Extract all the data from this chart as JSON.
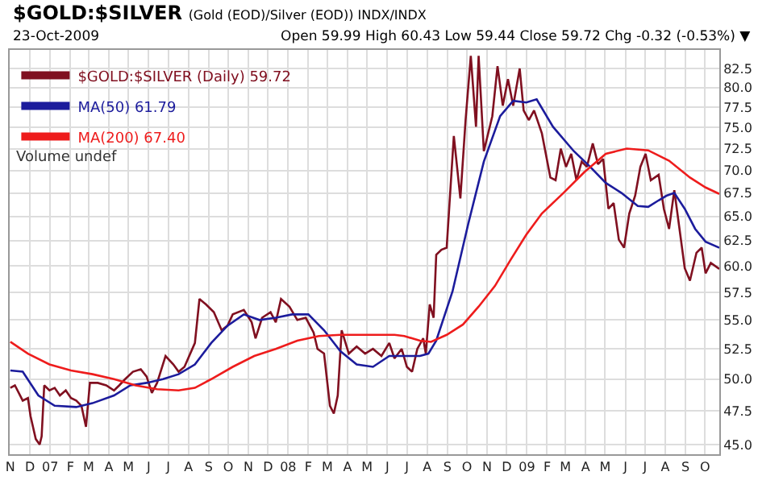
{
  "chart_data": {
    "type": "line",
    "title": "$GOLD:$SILVER",
    "subtitle": "(Gold (EOD)/Silver (EOD)) INDX/INDX",
    "annotations": [
      "23-Oct-2009",
      "Open 59.99 High 60.43 Low 59.44 Close 59.72 Chg -0.32 (-0.53%) ▼",
      "Volume undef"
    ],
    "log": true,
    "grid": true,
    "legend": "top left",
    "marker": "none",
    "line_style": "solid",
    "xlim": [
      "2006-10-31",
      "2009-10-23"
    ],
    "xticks": [
      {
        "value": "2006-11-01",
        "label": "N"
      },
      {
        "value": "2006-12-01",
        "label": "D"
      },
      {
        "value": "2007-01-01",
        "label": "07"
      },
      {
        "value": "2007-02-01",
        "label": "F"
      },
      {
        "value": "2007-03-01",
        "label": "M"
      },
      {
        "value": "2007-04-01",
        "label": "A"
      },
      {
        "value": "2007-05-01",
        "label": "M"
      },
      {
        "value": "2007-06-01",
        "label": "J"
      },
      {
        "value": "2007-07-01",
        "label": "J"
      },
      {
        "value": "2007-08-01",
        "label": "A"
      },
      {
        "value": "2007-09-01",
        "label": "S"
      },
      {
        "value": "2007-10-01",
        "label": "O"
      },
      {
        "value": "2007-11-01",
        "label": "N"
      },
      {
        "value": "2007-12-01",
        "label": "D"
      },
      {
        "value": "2008-01-01",
        "label": "08"
      },
      {
        "value": "2008-02-01",
        "label": "F"
      },
      {
        "value": "2008-03-01",
        "label": "M"
      },
      {
        "value": "2008-04-01",
        "label": "A"
      },
      {
        "value": "2008-05-01",
        "label": "M"
      },
      {
        "value": "2008-06-01",
        "label": "J"
      },
      {
        "value": "2008-07-01",
        "label": "J"
      },
      {
        "value": "2008-08-01",
        "label": "A"
      },
      {
        "value": "2008-09-01",
        "label": "S"
      },
      {
        "value": "2008-10-01",
        "label": "O"
      },
      {
        "value": "2008-11-01",
        "label": "N"
      },
      {
        "value": "2008-12-01",
        "label": "D"
      },
      {
        "value": "2009-01-01",
        "label": "09"
      },
      {
        "value": "2009-02-01",
        "label": "F"
      },
      {
        "value": "2009-03-01",
        "label": "M"
      },
      {
        "value": "2009-04-01",
        "label": "A"
      },
      {
        "value": "2009-05-01",
        "label": "M"
      },
      {
        "value": "2009-06-01",
        "label": "J"
      },
      {
        "value": "2009-07-01",
        "label": "J"
      },
      {
        "value": "2009-08-01",
        "label": "A"
      },
      {
        "value": "2009-09-01",
        "label": "S"
      },
      {
        "value": "2009-10-01",
        "label": "O"
      }
    ],
    "ylim": [
      44.3,
      85
    ],
    "yticks": [
      {
        "value": 45,
        "label": "45.0"
      },
      {
        "value": 47.5,
        "label": "47.5"
      },
      {
        "value": 50,
        "label": "50.0"
      },
      {
        "value": 52.5,
        "label": "52.5"
      },
      {
        "value": 55,
        "label": "55.0"
      },
      {
        "value": 57.5,
        "label": "57.5"
      },
      {
        "value": 60,
        "label": "60.0"
      },
      {
        "value": 62.5,
        "label": "62.5"
      },
      {
        "value": 65,
        "label": "65.0"
      },
      {
        "value": 67.5,
        "label": "67.5"
      },
      {
        "value": 70,
        "label": "70.0"
      },
      {
        "value": 72.5,
        "label": "72.5"
      },
      {
        "value": 75,
        "label": "75.0"
      },
      {
        "value": 77.5,
        "label": "77.5"
      },
      {
        "value": 80,
        "label": "80.0"
      },
      {
        "value": 82.5,
        "label": "82.5"
      }
    ],
    "series": [
      {
        "name": "$GOLD:$SILVER (Daily) 59.72",
        "color": "#801020",
        "x": [
          "2006-11-01",
          "2006-11-08",
          "2006-11-20",
          "2006-11-28",
          "2006-12-02",
          "2006-12-10",
          "2006-12-16",
          "2006-12-19",
          "2006-12-23",
          "2006-12-31",
          "2007-01-08",
          "2007-01-16",
          "2007-01-25",
          "2007-02-02",
          "2007-02-10",
          "2007-02-18",
          "2007-02-25",
          "2007-03-03",
          "2007-03-15",
          "2007-03-28",
          "2007-04-09",
          "2007-04-17",
          "2007-04-26",
          "2007-05-08",
          "2007-05-20",
          "2007-05-29",
          "2007-06-06",
          "2007-06-14",
          "2007-06-27",
          "2007-07-09",
          "2007-07-17",
          "2007-07-26",
          "2007-08-11",
          "2007-08-18",
          "2007-08-28",
          "2007-09-09",
          "2007-09-21",
          "2007-09-30",
          "2007-10-08",
          "2007-10-25",
          "2007-11-06",
          "2007-11-12",
          "2007-11-22",
          "2007-12-05",
          "2007-12-13",
          "2007-12-21",
          "2008-01-03",
          "2008-01-15",
          "2008-01-28",
          "2008-02-09",
          "2008-02-15",
          "2008-02-25",
          "2008-03-05",
          "2008-03-11",
          "2008-03-17",
          "2008-03-23",
          "2008-04-03",
          "2008-04-15",
          "2008-04-28",
          "2008-05-10",
          "2008-05-23",
          "2008-06-04",
          "2008-06-12",
          "2008-06-23",
          "2008-07-01",
          "2008-07-09",
          "2008-07-17",
          "2008-07-26",
          "2008-07-30",
          "2008-08-05",
          "2008-08-11",
          "2008-08-15",
          "2008-08-23",
          "2008-08-31",
          "2008-09-11",
          "2008-09-21",
          "2008-09-29",
          "2008-10-07",
          "2008-10-15",
          "2008-10-19",
          "2008-10-27",
          "2008-11-09",
          "2008-11-17",
          "2008-11-25",
          "2008-12-03",
          "2008-12-11",
          "2008-12-21",
          "2008-12-27",
          "2009-01-04",
          "2009-01-12",
          "2009-01-24",
          "2009-02-06",
          "2009-02-14",
          "2009-02-22",
          "2009-03-02",
          "2009-03-10",
          "2009-03-18",
          "2009-03-26",
          "2009-04-03",
          "2009-04-12",
          "2009-04-20",
          "2009-04-28",
          "2009-05-06",
          "2009-05-14",
          "2009-05-22",
          "2009-05-30",
          "2009-06-07",
          "2009-06-16",
          "2009-06-24",
          "2009-07-02",
          "2009-07-10",
          "2009-07-22",
          "2009-07-30",
          "2009-08-07",
          "2009-08-15",
          "2009-08-23",
          "2009-08-31",
          "2009-09-08",
          "2009-09-18",
          "2009-09-26",
          "2009-10-02",
          "2009-10-10",
          "2009-10-23"
        ],
        "values": [
          49.3,
          49.5,
          48.3,
          48.5,
          47.1,
          45.4,
          45.0,
          45.6,
          49.5,
          49.1,
          49.3,
          48.7,
          49.1,
          48.5,
          48.3,
          47.9,
          46.3,
          49.7,
          49.7,
          49.5,
          49.1,
          49.5,
          50.0,
          50.6,
          50.8,
          50.2,
          48.9,
          49.7,
          51.9,
          51.2,
          50.6,
          51.0,
          53.0,
          56.9,
          56.4,
          55.7,
          54.1,
          54.5,
          55.5,
          55.9,
          54.8,
          53.4,
          55.2,
          55.7,
          54.8,
          56.9,
          56.2,
          55.0,
          55.2,
          53.9,
          52.5,
          52.1,
          47.9,
          47.3,
          48.7,
          54.1,
          52.1,
          52.7,
          52.1,
          52.5,
          51.9,
          53.0,
          51.7,
          52.5,
          51.0,
          50.6,
          52.5,
          53.4,
          52.1,
          56.4,
          55.2,
          61.1,
          61.6,
          61.8,
          74.0,
          66.9,
          75.9,
          84.2,
          75.1,
          84.2,
          72.2,
          76.4,
          82.8,
          77.7,
          81.1,
          77.7,
          82.5,
          77.1,
          75.9,
          77.1,
          74.3,
          69.2,
          68.9,
          72.5,
          70.4,
          71.9,
          68.9,
          71.0,
          70.4,
          73.1,
          70.7,
          71.3,
          65.8,
          66.4,
          62.6,
          61.8,
          65.3,
          67.2,
          70.4,
          71.9,
          68.9,
          69.5,
          65.8,
          63.7,
          67.8,
          63.7,
          59.8,
          58.6,
          61.3,
          61.8,
          59.3,
          60.3,
          59.72
        ]
      },
      {
        "name": "MA(50) 61.79",
        "color": "#1c1c9c",
        "x": [
          "2006-11-01",
          "2006-11-20",
          "2006-12-14",
          "2007-01-08",
          "2007-02-10",
          "2007-03-07",
          "2007-04-09",
          "2007-05-04",
          "2007-05-29",
          "2007-06-23",
          "2007-07-17",
          "2007-08-11",
          "2007-09-05",
          "2007-09-30",
          "2007-10-25",
          "2007-11-18",
          "2007-12-13",
          "2008-01-07",
          "2008-02-01",
          "2008-02-25",
          "2008-03-21",
          "2008-04-15",
          "2008-05-10",
          "2008-06-04",
          "2008-06-27",
          "2008-07-21",
          "2008-08-03",
          "2008-08-15",
          "2008-09-09",
          "2008-10-03",
          "2008-10-27",
          "2008-11-21",
          "2008-12-11",
          "2008-12-31",
          "2009-01-16",
          "2009-02-10",
          "2009-03-14",
          "2009-04-08",
          "2009-05-02",
          "2009-05-26",
          "2009-06-20",
          "2009-07-06",
          "2009-07-22",
          "2009-08-03",
          "2009-08-15",
          "2009-08-31",
          "2009-09-16",
          "2009-10-02",
          "2009-10-23"
        ],
        "values": [
          50.7,
          50.6,
          48.7,
          47.9,
          47.8,
          48.1,
          48.7,
          49.5,
          49.7,
          50.0,
          50.4,
          51.2,
          53.0,
          54.5,
          55.5,
          55.0,
          55.2,
          55.5,
          55.5,
          54.1,
          52.3,
          51.2,
          51.0,
          51.9,
          51.9,
          51.9,
          52.1,
          53.2,
          57.6,
          64.2,
          71.0,
          76.4,
          78.3,
          78.1,
          78.5,
          75.1,
          72.2,
          70.4,
          68.6,
          67.5,
          66.1,
          66.0,
          66.7,
          67.2,
          67.5,
          65.8,
          63.7,
          62.4,
          61.79
        ]
      },
      {
        "name": "MA(200) 67.40",
        "color": "#ee1c1c",
        "x": [
          "2006-11-01",
          "2006-11-28",
          "2006-12-31",
          "2007-02-02",
          "2007-03-07",
          "2007-04-09",
          "2007-05-12",
          "2007-06-14",
          "2007-07-17",
          "2007-08-11",
          "2007-09-05",
          "2007-10-08",
          "2007-11-10",
          "2007-12-13",
          "2008-01-15",
          "2008-02-17",
          "2008-03-21",
          "2008-04-23",
          "2008-06-12",
          "2008-06-27",
          "2008-07-21",
          "2008-08-07",
          "2008-08-31",
          "2008-09-25",
          "2008-10-19",
          "2008-11-13",
          "2008-12-07",
          "2008-12-31",
          "2009-01-24",
          "2009-02-26",
          "2009-03-30",
          "2009-05-02",
          "2009-06-03",
          "2009-07-06",
          "2009-08-07",
          "2009-09-08",
          "2009-10-02",
          "2009-10-23"
        ],
        "values": [
          53.1,
          52.1,
          51.2,
          50.7,
          50.4,
          50.0,
          49.5,
          49.2,
          49.1,
          49.3,
          50.0,
          51.0,
          51.9,
          52.5,
          53.2,
          53.6,
          53.7,
          53.7,
          53.7,
          53.6,
          53.2,
          53.1,
          53.7,
          54.6,
          56.2,
          58.1,
          60.6,
          63.1,
          65.3,
          67.5,
          69.8,
          71.9,
          72.5,
          72.3,
          71.1,
          69.2,
          68.1,
          67.4
        ]
      }
    ]
  }
}
